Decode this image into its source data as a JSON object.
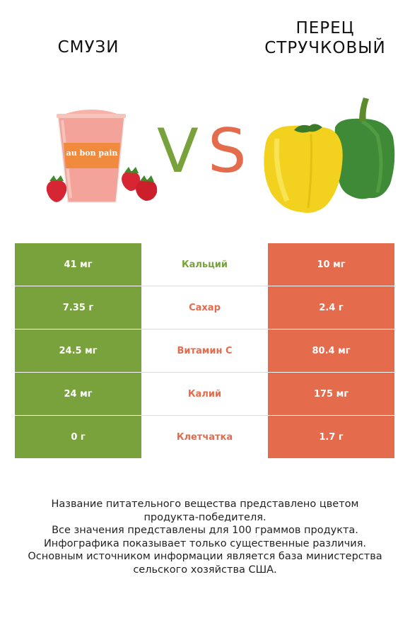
{
  "header": {
    "left_title": "СМУЗИ",
    "right_title_line1": "ПЕРЕЦ",
    "right_title_line2": "СТРУЧКОВЫЙ",
    "vs_v": "V",
    "vs_s": "S"
  },
  "colors": {
    "left_accent": "#7aa23c",
    "right_accent": "#e46b4c"
  },
  "illustrations": {
    "left": "smoothie-cup-with-strawberries",
    "right": "yellow-and-green-bell-peppers",
    "cup_label": "au bon pain"
  },
  "rows": [
    {
      "left": "41 мг",
      "nutrient": "Кальций",
      "right": "10 мг",
      "winner": "left"
    },
    {
      "left": "7.35 г",
      "nutrient": "Сахар",
      "right": "2.4 г",
      "winner": "right"
    },
    {
      "left": "24.5 мг",
      "nutrient": "Витамин C",
      "right": "80.4 мг",
      "winner": "right"
    },
    {
      "left": "24 мг",
      "nutrient": "Калий",
      "right": "175 мг",
      "winner": "right"
    },
    {
      "left": "0 г",
      "nutrient": "Клетчатка",
      "right": "1.7 г",
      "winner": "right"
    }
  ],
  "footer": [
    "Название питательного вещества представлено цветом",
    "продукта-победителя.",
    "Все значения представлены для 100 граммов продукта.",
    "Инфографика показывает только существенные различия.",
    "Основным источником информации является база министерства",
    "сельского хозяйства США."
  ]
}
